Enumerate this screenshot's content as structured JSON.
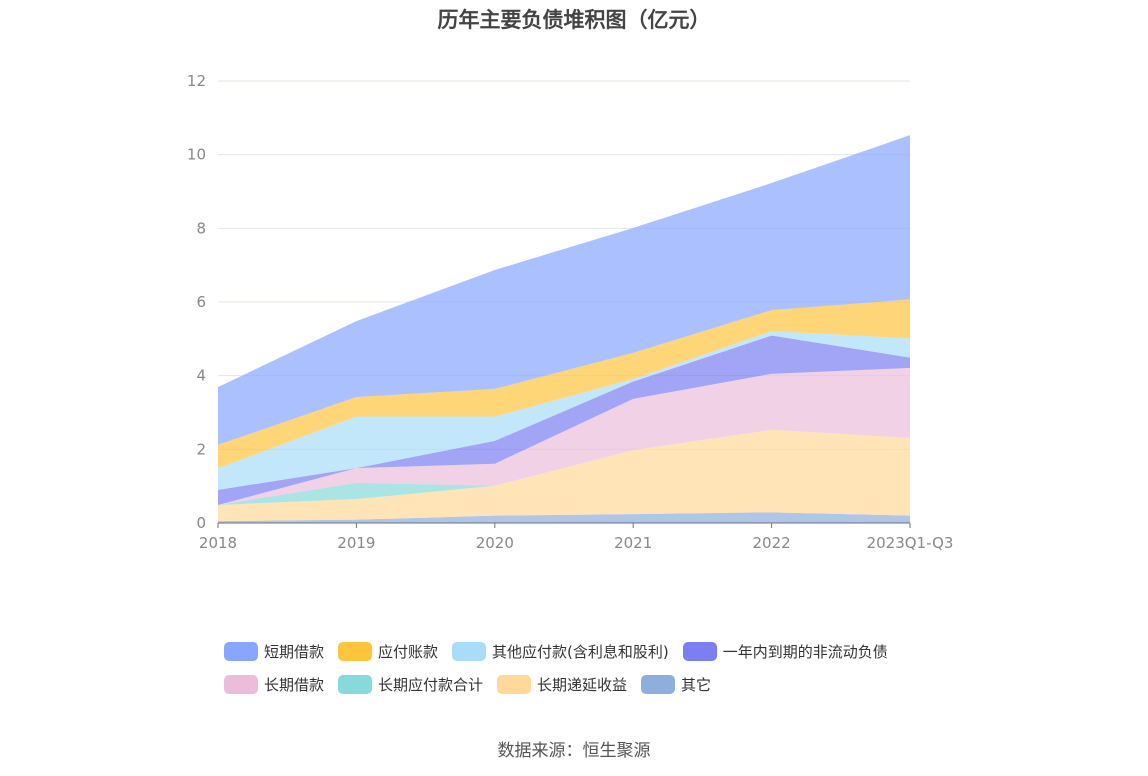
{
  "chart_data": {
    "type": "area",
    "stacked": true,
    "title": "历年主要负债堆积图（亿元）",
    "xlabel": "",
    "ylabel": "",
    "ylim": [
      0,
      12
    ],
    "yticks": [
      "0",
      "2",
      "4",
      "6",
      "8",
      "10",
      "12"
    ],
    "grid": true,
    "legend_position": "bottom",
    "categories": [
      "2018",
      "2019",
      "2020",
      "2021",
      "2022",
      "2023Q1-Q3"
    ],
    "series": [
      {
        "name": "其它",
        "color": "#8eaede",
        "values": [
          0.05,
          0.09,
          0.2,
          0.24,
          0.29,
          0.2
        ]
      },
      {
        "name": "长期递延收益",
        "color": "#ffd99a",
        "values": [
          0.44,
          0.56,
          0.81,
          1.74,
          2.24,
          2.11
        ]
      },
      {
        "name": "长期应付款合计",
        "color": "#88d9d9",
        "values": [
          0,
          0.44,
          0,
          0,
          0,
          0
        ]
      },
      {
        "name": "长期借款",
        "color": "#ebbddb",
        "values": [
          0,
          0.4,
          0.6,
          1.39,
          1.52,
          1.9
        ]
      },
      {
        "name": "一年内到期的非流动负债",
        "color": "#7b7ff2",
        "values": [
          0.41,
          0,
          0.62,
          0.47,
          1.04,
          0.28
        ]
      },
      {
        "name": "其他应付款(含利息和股利)",
        "color": "#a8dcf8",
        "values": [
          0.59,
          1.4,
          0.66,
          0.07,
          0.12,
          0.52
        ]
      },
      {
        "name": "应付账款",
        "color": "#ffc53d",
        "values": [
          0.63,
          0.53,
          0.75,
          0.71,
          0.57,
          1.06
        ]
      },
      {
        "name": "短期借款",
        "color": "#88a6ff",
        "values": [
          1.57,
          2.06,
          3.23,
          3.39,
          3.45,
          4.46
        ]
      }
    ],
    "legend_order": [
      "短期借款",
      "应付账款",
      "其他应付款(含利息和股利)",
      "一年内到期的非流动负债",
      "长期借款",
      "长期应付款合计",
      "长期递延收益",
      "其它"
    ]
  },
  "source": "数据来源：恒生聚源"
}
